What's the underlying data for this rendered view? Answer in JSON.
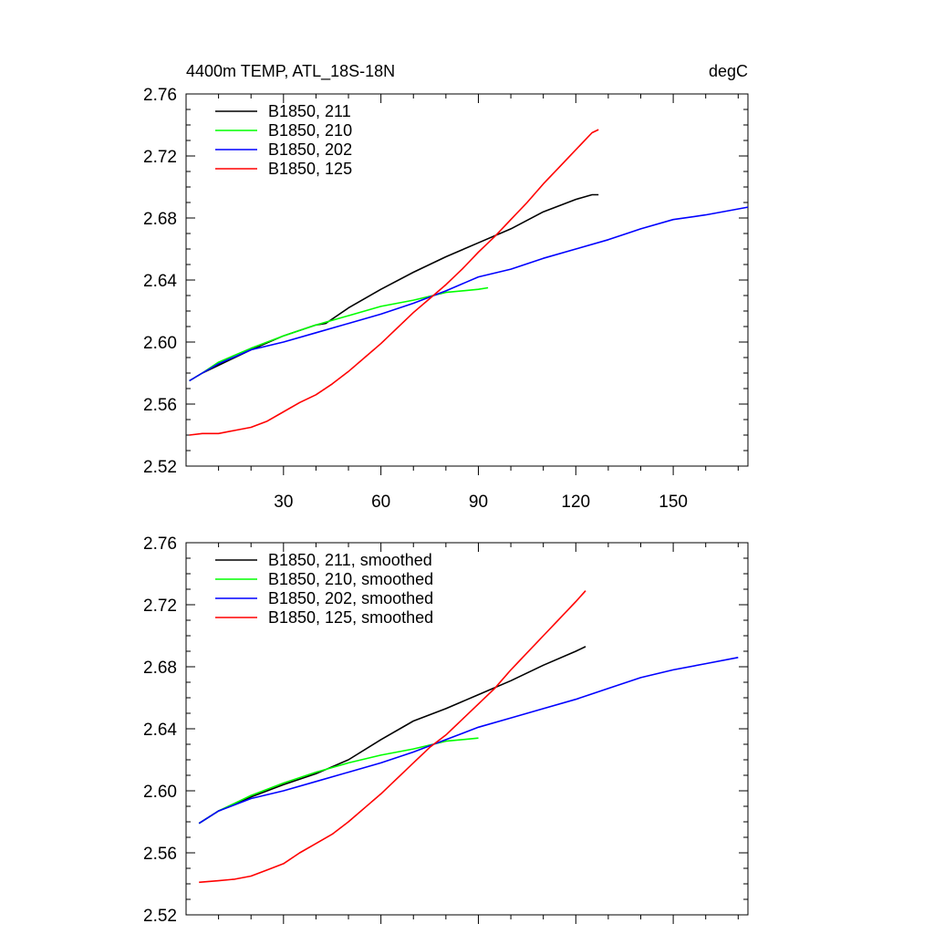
{
  "chart_data": [
    {
      "type": "line",
      "title_left": "4400m TEMP, ATL_18S-18N",
      "title_right": "degC",
      "xlim": [
        0,
        173
      ],
      "ylim": [
        2.52,
        2.76
      ],
      "xticks": [
        30,
        60,
        90,
        120,
        150
      ],
      "xtick_labels": [
        "30",
        "60",
        "90",
        "120",
        "150"
      ],
      "yticks": [
        2.52,
        2.56,
        2.6,
        2.64,
        2.68,
        2.72,
        2.76
      ],
      "ytick_labels": [
        "2.52",
        "2.56",
        "2.60",
        "2.64",
        "2.68",
        "2.72",
        "2.76"
      ],
      "legend_position": "top-left",
      "series": [
        {
          "name": "B1850, 211",
          "color": "#000000",
          "x": [
            1,
            5,
            10,
            20,
            30,
            40,
            43,
            50,
            60,
            70,
            80,
            90,
            100,
            110,
            120,
            125,
            127
          ],
          "y": [
            2.575,
            2.58,
            2.585,
            2.595,
            2.604,
            2.611,
            2.612,
            2.622,
            2.634,
            2.645,
            2.655,
            2.664,
            2.673,
            2.684,
            2.692,
            2.695,
            2.695
          ]
        },
        {
          "name": "B1850, 210",
          "color": "#00ff00",
          "x": [
            1,
            5,
            10,
            20,
            30,
            40,
            50,
            60,
            70,
            80,
            90,
            93
          ],
          "y": [
            2.575,
            2.58,
            2.587,
            2.596,
            2.604,
            2.611,
            2.617,
            2.623,
            2.627,
            2.632,
            2.634,
            2.635
          ]
        },
        {
          "name": "B1850, 202",
          "color": "#0000ff",
          "x": [
            1,
            5,
            10,
            20,
            30,
            40,
            50,
            60,
            70,
            80,
            90,
            100,
            110,
            120,
            130,
            140,
            150,
            160,
            173
          ],
          "y": [
            2.575,
            2.58,
            2.586,
            2.595,
            2.6,
            2.606,
            2.612,
            2.618,
            2.625,
            2.633,
            2.642,
            2.647,
            2.654,
            2.66,
            2.666,
            2.673,
            2.679,
            2.682,
            2.687
          ]
        },
        {
          "name": "B1850, 125",
          "color": "#ff0000",
          "x": [
            1,
            5,
            10,
            15,
            20,
            25,
            30,
            35,
            40,
            45,
            50,
            55,
            60,
            65,
            70,
            75,
            80,
            85,
            90,
            95,
            100,
            105,
            110,
            115,
            120,
            125,
            127
          ],
          "y": [
            2.54,
            2.541,
            2.541,
            2.543,
            2.545,
            2.549,
            2.555,
            2.561,
            2.566,
            2.573,
            2.581,
            2.59,
            2.599,
            2.609,
            2.619,
            2.628,
            2.637,
            2.647,
            2.658,
            2.668,
            2.679,
            2.69,
            2.702,
            2.713,
            2.724,
            2.735,
            2.737
          ]
        }
      ]
    },
    {
      "type": "line",
      "xlim": [
        0,
        173
      ],
      "ylim": [
        2.52,
        2.76
      ],
      "xticks": [
        30,
        60,
        90,
        120,
        150
      ],
      "yticks": [
        2.52,
        2.56,
        2.6,
        2.64,
        2.68,
        2.72,
        2.76
      ],
      "ytick_labels": [
        "2.52",
        "2.56",
        "2.60",
        "2.64",
        "2.68",
        "2.72",
        "2.76"
      ],
      "legend_position": "top-left",
      "series": [
        {
          "name": "B1850, 211, smoothed",
          "color": "#000000",
          "x": [
            4,
            10,
            20,
            30,
            40,
            50,
            60,
            70,
            80,
            90,
            100,
            110,
            120,
            123
          ],
          "y": [
            2.579,
            2.587,
            2.596,
            2.604,
            2.611,
            2.62,
            2.633,
            2.645,
            2.653,
            2.662,
            2.671,
            2.681,
            2.69,
            2.693
          ]
        },
        {
          "name": "B1850, 210, smoothed",
          "color": "#00ff00",
          "x": [
            4,
            10,
            20,
            30,
            40,
            50,
            60,
            70,
            80,
            90
          ],
          "y": [
            2.579,
            2.587,
            2.597,
            2.605,
            2.612,
            2.618,
            2.623,
            2.627,
            2.632,
            2.634
          ]
        },
        {
          "name": "B1850, 202, smoothed",
          "color": "#0000ff",
          "x": [
            4,
            10,
            20,
            30,
            40,
            50,
            60,
            70,
            80,
            90,
            100,
            110,
            120,
            130,
            140,
            150,
            160,
            170
          ],
          "y": [
            2.579,
            2.587,
            2.595,
            2.6,
            2.606,
            2.612,
            2.618,
            2.625,
            2.633,
            2.641,
            2.647,
            2.653,
            2.659,
            2.666,
            2.673,
            2.678,
            2.682,
            2.686
          ]
        },
        {
          "name": "B1850, 125, smoothed",
          "color": "#ff0000",
          "x": [
            4,
            10,
            15,
            20,
            25,
            30,
            35,
            40,
            45,
            50,
            55,
            60,
            65,
            70,
            75,
            80,
            85,
            90,
            95,
            100,
            105,
            110,
            115,
            120,
            123
          ],
          "y": [
            2.541,
            2.542,
            2.543,
            2.545,
            2.549,
            2.553,
            2.56,
            2.566,
            2.572,
            2.58,
            2.589,
            2.598,
            2.608,
            2.618,
            2.628,
            2.636,
            2.646,
            2.656,
            2.666,
            2.678,
            2.689,
            2.7,
            2.711,
            2.722,
            2.729
          ]
        }
      ]
    }
  ]
}
